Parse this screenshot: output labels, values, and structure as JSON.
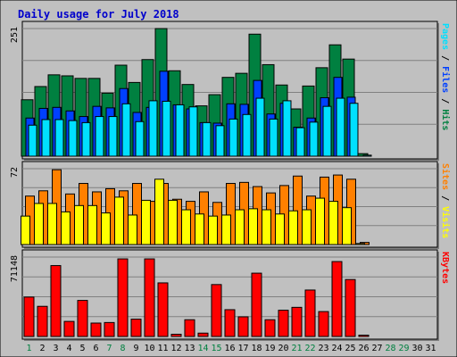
{
  "chart_data": {
    "title": "Daily usage for July 2018",
    "x": [
      "1",
      "2",
      "3",
      "4",
      "5",
      "6",
      "7",
      "8",
      "9",
      "10",
      "11",
      "12",
      "13",
      "14",
      "15",
      "16",
      "17",
      "18",
      "19",
      "20",
      "21",
      "22",
      "23",
      "24",
      "25",
      "26",
      "27",
      "28",
      "29",
      "30",
      "31"
    ],
    "weekend_days": [
      "1",
      "7",
      "8",
      "14",
      "15",
      "21",
      "22",
      "28",
      "29"
    ],
    "colors": {
      "background": "#c0c0c0",
      "title": "#0000cc",
      "hits": "#008040",
      "files": "#0040ff",
      "pages": "#00e0ff",
      "visits": "#ffff00",
      "sites": "#ff8000",
      "kbytes": "#ff0000",
      "weekday_label": "#000000",
      "weekend_label": "#008040"
    },
    "panels": [
      {
        "type": "bar",
        "max_label": "251",
        "ymax": 251,
        "legend": [
          {
            "text": "Pages",
            "color": "#00e0ff"
          },
          {
            "text": " / ",
            "color": "#000000"
          },
          {
            "text": "Files",
            "color": "#0040ff"
          },
          {
            "text": " / ",
            "color": "#000000"
          },
          {
            "text": "Hits",
            "color": "#008040"
          }
        ],
        "series": [
          {
            "name": "Hits",
            "color": "#008040",
            "values": [
              111,
              137,
              160,
              158,
              153,
              153,
              124,
              179,
              145,
              190,
              251,
              168,
              141,
              99,
              121,
              155,
              163,
              240,
              180,
              140,
              93,
              138,
              174,
              219,
              191,
              5,
              0,
              0,
              0,
              0,
              0
            ]
          },
          {
            "name": "Files",
            "color": "#0040ff",
            "values": [
              75,
              94,
              96,
              89,
              78,
              98,
              95,
              133,
              86,
              96,
              167,
              101,
              93,
              66,
              65,
              103,
              102,
              149,
              83,
              104,
              57,
              75,
              115,
              155,
              116,
              0,
              0,
              0,
              0,
              0,
              0
            ]
          },
          {
            "name": "Pages",
            "color": "#00e0ff",
            "values": [
              61,
              72,
              72,
              70,
              66,
              78,
              78,
              103,
              68,
              109,
              108,
              101,
              97,
              66,
              60,
              73,
              82,
              114,
              73,
              109,
              56,
              67,
              98,
              114,
              104,
              2,
              0,
              0,
              0,
              0,
              0
            ]
          }
        ]
      },
      {
        "type": "bar",
        "max_label": "72",
        "ymax": 72,
        "legend": [
          {
            "text": "Sites",
            "color": "#ff8000"
          },
          {
            "text": " / ",
            "color": "#000000"
          },
          {
            "text": "Visits",
            "color": "#ffff00"
          }
        ],
        "series": [
          {
            "name": "Sites",
            "color": "#ff8000",
            "values": [
              46,
              51,
              71,
              48,
              58,
              50,
              53,
              51,
              58,
              41,
              58,
              43,
              41,
              50,
              40,
              58,
              59,
              55,
              49,
              56,
              65,
              46,
              64,
              66,
              62,
              2,
              0,
              0,
              0,
              0,
              0
            ]
          },
          {
            "name": "Visits",
            "color": "#ffff00",
            "values": [
              27,
              39,
              39,
              31,
              37,
              37,
              30,
              45,
              28,
              42,
              62,
              42,
              33,
              29,
              27,
              28,
              33,
              34,
              33,
              29,
              32,
              33,
              44,
              41,
              35,
              1,
              0,
              0,
              0,
              0,
              0
            ]
          }
        ]
      },
      {
        "type": "bar",
        "max_label": "71148",
        "ymax": 71148,
        "legend": [
          {
            "text": "KBytes",
            "color": "#ff0000"
          }
        ],
        "series": [
          {
            "name": "KBytes",
            "color": "#ff0000",
            "values": [
              35300,
              27000,
              63500,
              13500,
              32300,
              12000,
              12500,
              69500,
              15500,
              69500,
              48000,
              2000,
              15000,
              3000,
              46500,
              24000,
              17600,
              56700,
              15000,
              23500,
              26100,
              41600,
              22300,
              67100,
              51000,
              1200,
              0,
              0,
              0,
              0,
              0
            ]
          }
        ]
      }
    ]
  }
}
